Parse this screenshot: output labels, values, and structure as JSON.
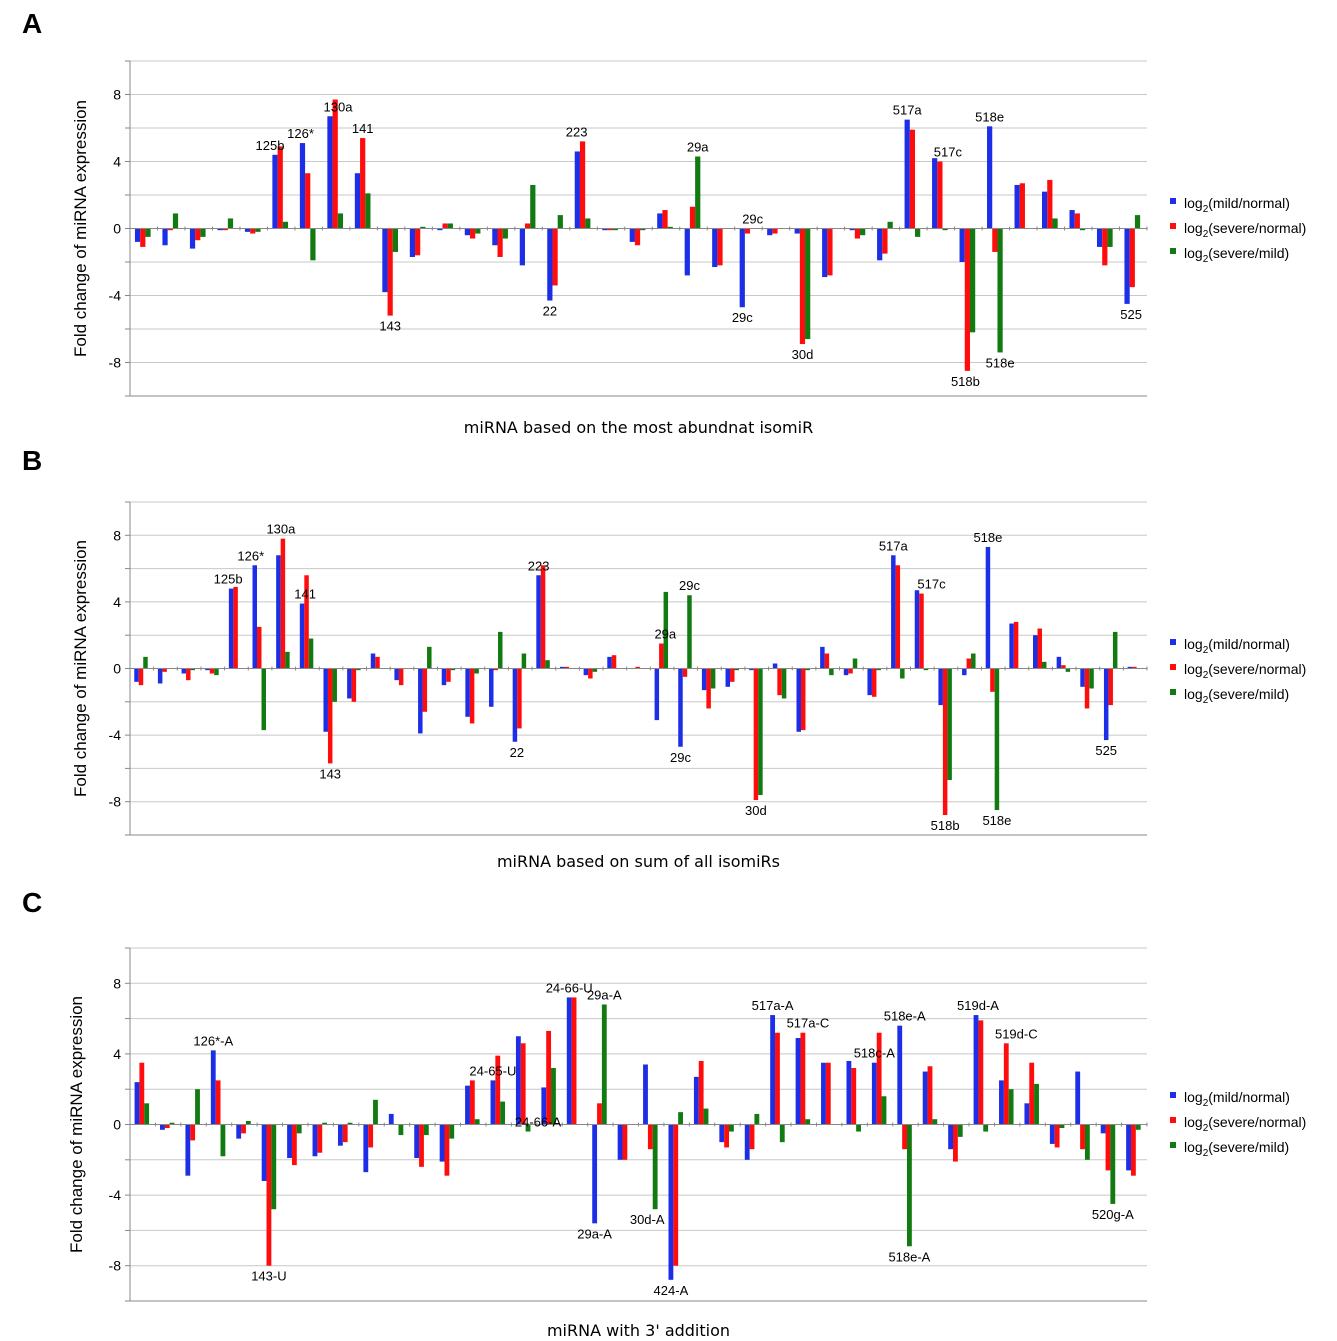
{
  "colors": {
    "mild_normal": "#1c2ee6",
    "severe_normal": "#ff0d0d",
    "severe_mild": "#117a11",
    "grid": "#c8c8c8",
    "axis": "#888888"
  },
  "chart_data": [
    {
      "panel": "A",
      "type": "bar",
      "xlabel": "miRNA based on the most abundnat isomiR",
      "ylabel": "Fold change of miRNA expression",
      "ylim": [
        -10,
        10
      ],
      "grid_step": 2,
      "yticks": [
        -8,
        -4,
        0,
        4,
        8
      ],
      "legend": {
        "placement": "right",
        "entries": [
          {
            "pre": "log",
            "sub": "2",
            "post": "(mild/normal)"
          },
          {
            "pre": "log",
            "sub": "2",
            "post": "(severe/normal)"
          },
          {
            "pre": "log",
            "sub": "2",
            "post": "(severe/mild)"
          }
        ]
      },
      "series": [
        {
          "values": [
            -0.8,
            -1,
            -1.2,
            -0.1,
            -0.2,
            4.4,
            5.1,
            6.7,
            3.3,
            -3.8,
            -1.7,
            -0.1,
            -0.4,
            -1,
            -2.2,
            -4.3,
            4.6,
            -0.1,
            -0.8,
            0.9,
            -2.8,
            -2.3,
            -4.7,
            -0.4,
            -0.3,
            -2.9,
            -0.1,
            -1.9,
            6.5,
            4.2,
            -2,
            6.1,
            2.6,
            2.2,
            1.1,
            -1.1,
            -4.5
          ]
        },
        {
          "values": [
            -1.1,
            -0.1,
            -0.7,
            -0.1,
            -0.3,
            4.9,
            3.3,
            7.7,
            5.4,
            -5.2,
            -1.6,
            0.3,
            -0.6,
            -1.7,
            0.3,
            -3.4,
            5.2,
            -0.1,
            -1,
            1.1,
            1.3,
            -2.2,
            -0.3,
            -0.3,
            -6.9,
            -2.8,
            -0.6,
            -1.5,
            5.9,
            4,
            -8.5,
            -1.4,
            2.7,
            2.9,
            0.9,
            -2.2,
            -3.5
          ]
        },
        {
          "values": [
            -0.5,
            0.9,
            -0.5,
            0.6,
            -0.2,
            0.4,
            -1.9,
            0.9,
            2.1,
            -1.4,
            0.1,
            0.3,
            -0.3,
            -0.6,
            2.6,
            0.8,
            0.6,
            -0.1,
            -0.1,
            0.1,
            4.3,
            0,
            0,
            0,
            -6.6,
            0,
            -0.4,
            0.4,
            -0.5,
            -0.1,
            -6.2,
            -7.4,
            0,
            0.6,
            -0.1,
            -1.1,
            0.8
          ]
        }
      ],
      "annotations": [
        {
          "text": "125b",
          "i": 5,
          "s": 0,
          "pos": "top",
          "dx": -5
        },
        {
          "text": "126*",
          "i": 6,
          "s": 0,
          "pos": "top",
          "dx": -2
        },
        {
          "text": "130a",
          "i": 7,
          "s": 0,
          "pos": "top",
          "dx": 8
        },
        {
          "text": "141",
          "i": 8,
          "s": 1,
          "pos": "top",
          "dx": 0
        },
        {
          "text": "223",
          "i": 16,
          "s": 1,
          "pos": "top",
          "dx": -6
        },
        {
          "text": "29a",
          "i": 20,
          "s": 2,
          "pos": "top",
          "dx": 0
        },
        {
          "text": "29c",
          "i": 22,
          "s": 2,
          "pos": "top",
          "dx": 0
        },
        {
          "text": "517a",
          "i": 28,
          "s": 0,
          "pos": "top",
          "dx": 0
        },
        {
          "text": "517c",
          "i": 29,
          "s": 1,
          "pos": "top",
          "dx": 8
        },
        {
          "text": "518e",
          "i": 31,
          "s": 0,
          "pos": "top",
          "dx": 0
        },
        {
          "text": "143",
          "i": 9,
          "s": 1,
          "pos": "bottom",
          "dx": 0
        },
        {
          "text": "22",
          "i": 15,
          "s": 0,
          "pos": "bottom",
          "dx": 0
        },
        {
          "text": "29c",
          "i": 22,
          "s": 0,
          "pos": "bottom",
          "dx": 0
        },
        {
          "text": "30d",
          "i": 24,
          "s": 1,
          "pos": "bottom",
          "dx": 0
        },
        {
          "text": "518b",
          "i": 30,
          "s": 1,
          "pos": "bottom",
          "dx": -2
        },
        {
          "text": "518e",
          "i": 31,
          "s": 2,
          "pos": "bottom",
          "dx": 0
        },
        {
          "text": "525",
          "i": 36,
          "s": 0,
          "pos": "bottom",
          "dx": 4
        }
      ]
    },
    {
      "panel": "B",
      "type": "bar",
      "xlabel": "miRNA based on sum of all isomiRs",
      "ylabel": "Fold change of miRNA expression",
      "ylim": [
        -10,
        10
      ],
      "grid_step": 2,
      "yticks": [
        -8,
        -4,
        0,
        4,
        8
      ],
      "legend": {
        "placement": "right",
        "entries": [
          {
            "pre": "log",
            "sub": "2",
            "post": "(mild/normal)"
          },
          {
            "pre": "log",
            "sub": "2",
            "post": "(severe/normal)"
          },
          {
            "pre": "log",
            "sub": "2",
            "post": "(severe/mild)"
          }
        ]
      },
      "series": [
        {
          "values": [
            -0.8,
            -0.9,
            -0.3,
            -0.1,
            4.8,
            6.2,
            6.8,
            3.9,
            -3.8,
            -1.8,
            0.9,
            -0.7,
            -3.9,
            -1,
            -2.9,
            -2.3,
            -4.4,
            5.6,
            0.1,
            -0.4,
            0.7,
            0,
            -3.1,
            -4.7,
            -1.3,
            -1.1,
            -0.1,
            0.3,
            -3.8,
            1.3,
            -0.4,
            -1.6,
            6.8,
            4.7,
            -2.2,
            -0.4,
            7.3,
            2.7,
            2,
            0.7,
            -1.1,
            -4.3,
            0.1
          ]
        },
        {
          "values": [
            -1,
            -0.2,
            -0.7,
            -0.3,
            4.9,
            2.5,
            7.8,
            5.6,
            -5.7,
            -2,
            0.7,
            -1,
            -2.6,
            -0.8,
            -3.3,
            -0.1,
            -3.6,
            6.2,
            0.1,
            -0.6,
            0.8,
            0.1,
            1.5,
            -0.5,
            -2.4,
            -0.8,
            -7.9,
            -1.6,
            -3.7,
            0.9,
            -0.3,
            -1.7,
            6.2,
            4.5,
            -8.8,
            0.6,
            -1.4,
            2.8,
            2.4,
            0.2,
            -2.4,
            -2.2,
            0.1
          ]
        },
        {
          "values": [
            0.7,
            0,
            -0.1,
            -0.4,
            0,
            -3.7,
            1,
            1.8,
            -2,
            -0.1,
            0,
            0,
            1.3,
            -0.1,
            -0.3,
            2.2,
            0.9,
            0.5,
            0,
            -0.2,
            0,
            0,
            4.6,
            4.4,
            -1.2,
            -0.1,
            -7.6,
            -1.8,
            -0.1,
            -0.4,
            0.6,
            -0.1,
            -0.6,
            -0.1,
            -6.7,
            0.9,
            -8.5,
            0,
            0.4,
            -0.2,
            -1.2,
            2.2,
            0
          ]
        }
      ],
      "annotations": [
        {
          "text": "125b",
          "i": 4,
          "s": 0,
          "pos": "top",
          "dx": -3
        },
        {
          "text": "126*",
          "i": 5,
          "s": 0,
          "pos": "top",
          "dx": -4
        },
        {
          "text": "130a",
          "i": 6,
          "s": 1,
          "pos": "top",
          "dx": -2
        },
        {
          "text": "141",
          "i": 7,
          "s": 0,
          "pos": "top",
          "dx": 3
        },
        {
          "text": "223",
          "i": 17,
          "s": 0,
          "pos": "top",
          "dx": 0
        },
        {
          "text": "29a",
          "i": 22,
          "s": 1,
          "pos": "top",
          "dx": 4
        },
        {
          "text": "29c",
          "i": 23,
          "s": 2,
          "pos": "top",
          "dx": 0
        },
        {
          "text": "517a",
          "i": 32,
          "s": 0,
          "pos": "top",
          "dx": 0
        },
        {
          "text": "517c",
          "i": 33,
          "s": 1,
          "pos": "top",
          "dx": 10
        },
        {
          "text": "518e",
          "i": 36,
          "s": 0,
          "pos": "top",
          "dx": 0
        },
        {
          "text": "143",
          "i": 8,
          "s": 1,
          "pos": "bottom",
          "dx": 0
        },
        {
          "text": "22",
          "i": 16,
          "s": 0,
          "pos": "bottom",
          "dx": 2
        },
        {
          "text": "29c",
          "i": 23,
          "s": 0,
          "pos": "bottom",
          "dx": 0
        },
        {
          "text": "30d",
          "i": 26,
          "s": 1,
          "pos": "bottom",
          "dx": 0
        },
        {
          "text": "518b",
          "i": 34,
          "s": 1,
          "pos": "bottom",
          "dx": 0
        },
        {
          "text": "518e",
          "i": 36,
          "s": 2,
          "pos": "bottom",
          "dx": 0
        },
        {
          "text": "525",
          "i": 41,
          "s": 0,
          "pos": "bottom",
          "dx": 0
        }
      ]
    },
    {
      "panel": "C",
      "type": "bar",
      "xlabel": "miRNA with 3' addition",
      "ylabel": "Fold change of miRNA expression",
      "ylim": [
        -10,
        10
      ],
      "grid_step": 2,
      "yticks": [
        -8,
        -4,
        0,
        4,
        8
      ],
      "legend": {
        "placement": "right",
        "entries": [
          {
            "pre": "log",
            "sub": "2",
            "post": "(mild/normal)"
          },
          {
            "pre": "log",
            "sub": "2",
            "post": "(severe/normal)"
          },
          {
            "pre": "log",
            "sub": "2",
            "post": "(severe/mild)"
          }
        ]
      },
      "series": [
        {
          "values": [
            2.4,
            -0.3,
            -2.9,
            4.2,
            -0.8,
            -3.2,
            -1.9,
            -1.8,
            -1.2,
            -2.7,
            0.6,
            -1.9,
            -2.1,
            2.2,
            2.5,
            5,
            2.1,
            7.2,
            -5.6,
            -2,
            3.4,
            -8.8,
            2.7,
            -1,
            -2,
            6.2,
            4.9,
            3.5,
            3.6,
            3.5,
            5.6,
            3,
            -1.4,
            6.2,
            2.5,
            1.2,
            -1.1,
            3,
            -0.5,
            -2.6
          ]
        },
        {
          "values": [
            3.5,
            -0.2,
            -0.9,
            2.5,
            -0.5,
            -8,
            -2.3,
            -1.6,
            -1,
            -1.3,
            0,
            -2.4,
            -2.9,
            2.5,
            3.9,
            4.6,
            5.3,
            7.2,
            1.2,
            -2,
            -1.4,
            -8,
            3.6,
            -1.3,
            -1.4,
            5.2,
            5.2,
            3.5,
            3.2,
            5.2,
            -1.4,
            3.3,
            -2.1,
            5.9,
            4.6,
            3.5,
            -1.3,
            -1.4,
            -2.6,
            -2.9
          ]
        },
        {
          "values": [
            1.2,
            0.1,
            2,
            -1.8,
            0.2,
            -4.8,
            -0.5,
            0.1,
            0.1,
            1.4,
            -0.6,
            -0.6,
            -0.8,
            0.3,
            1.3,
            -0.4,
            3.2,
            0,
            6.8,
            0,
            -4.8,
            0.7,
            0.9,
            -0.4,
            0.6,
            -1,
            0.3,
            0,
            -0.4,
            1.6,
            -6.9,
            0.3,
            -0.7,
            -0.4,
            2,
            2.3,
            -0.2,
            -2,
            -4.5,
            -0.3
          ]
        }
      ],
      "annotations": [
        {
          "text": "126*-A",
          "i": 3,
          "s": 0,
          "pos": "top",
          "dx": 0
        },
        {
          "text": "24-65-U",
          "i": 14,
          "s": 0,
          "pos": "top",
          "dx": 0
        },
        {
          "text": "24-66-A",
          "i": 15,
          "s": 2,
          "pos": "top",
          "dx": 10
        },
        {
          "text": "24-66-U",
          "i": 17,
          "s": 0,
          "pos": "top",
          "dx": 0
        },
        {
          "text": "29a-A",
          "i": 18,
          "s": 2,
          "pos": "top",
          "dx": 0
        },
        {
          "text": "517a-A",
          "i": 25,
          "s": 0,
          "pos": "top",
          "dx": 0
        },
        {
          "text": "517a-C",
          "i": 26,
          "s": 1,
          "pos": "top",
          "dx": 5
        },
        {
          "text": "518c-A",
          "i": 29,
          "s": 0,
          "pos": "top",
          "dx": 0
        },
        {
          "text": "518e-A",
          "i": 30,
          "s": 0,
          "pos": "top",
          "dx": 5
        },
        {
          "text": "519d-A",
          "i": 33,
          "s": 0,
          "pos": "top",
          "dx": 2
        },
        {
          "text": "519d-C",
          "i": 34,
          "s": 1,
          "pos": "top",
          "dx": 10
        },
        {
          "text": "143-U",
          "i": 5,
          "s": 1,
          "pos": "bottom",
          "dx": 0
        },
        {
          "text": "29a-A",
          "i": 18,
          "s": 0,
          "pos": "bottom",
          "dx": 0
        },
        {
          "text": "30d-A",
          "i": 20,
          "s": 2,
          "pos": "bottom",
          "dx": -8
        },
        {
          "text": "424-A",
          "i": 21,
          "s": 0,
          "pos": "bottom",
          "dx": 0
        },
        {
          "text": "518e-A",
          "i": 30,
          "s": 2,
          "pos": "bottom",
          "dx": 0
        },
        {
          "text": "520g-A",
          "i": 38,
          "s": 2,
          "pos": "bottom",
          "dx": 0
        }
      ]
    }
  ]
}
